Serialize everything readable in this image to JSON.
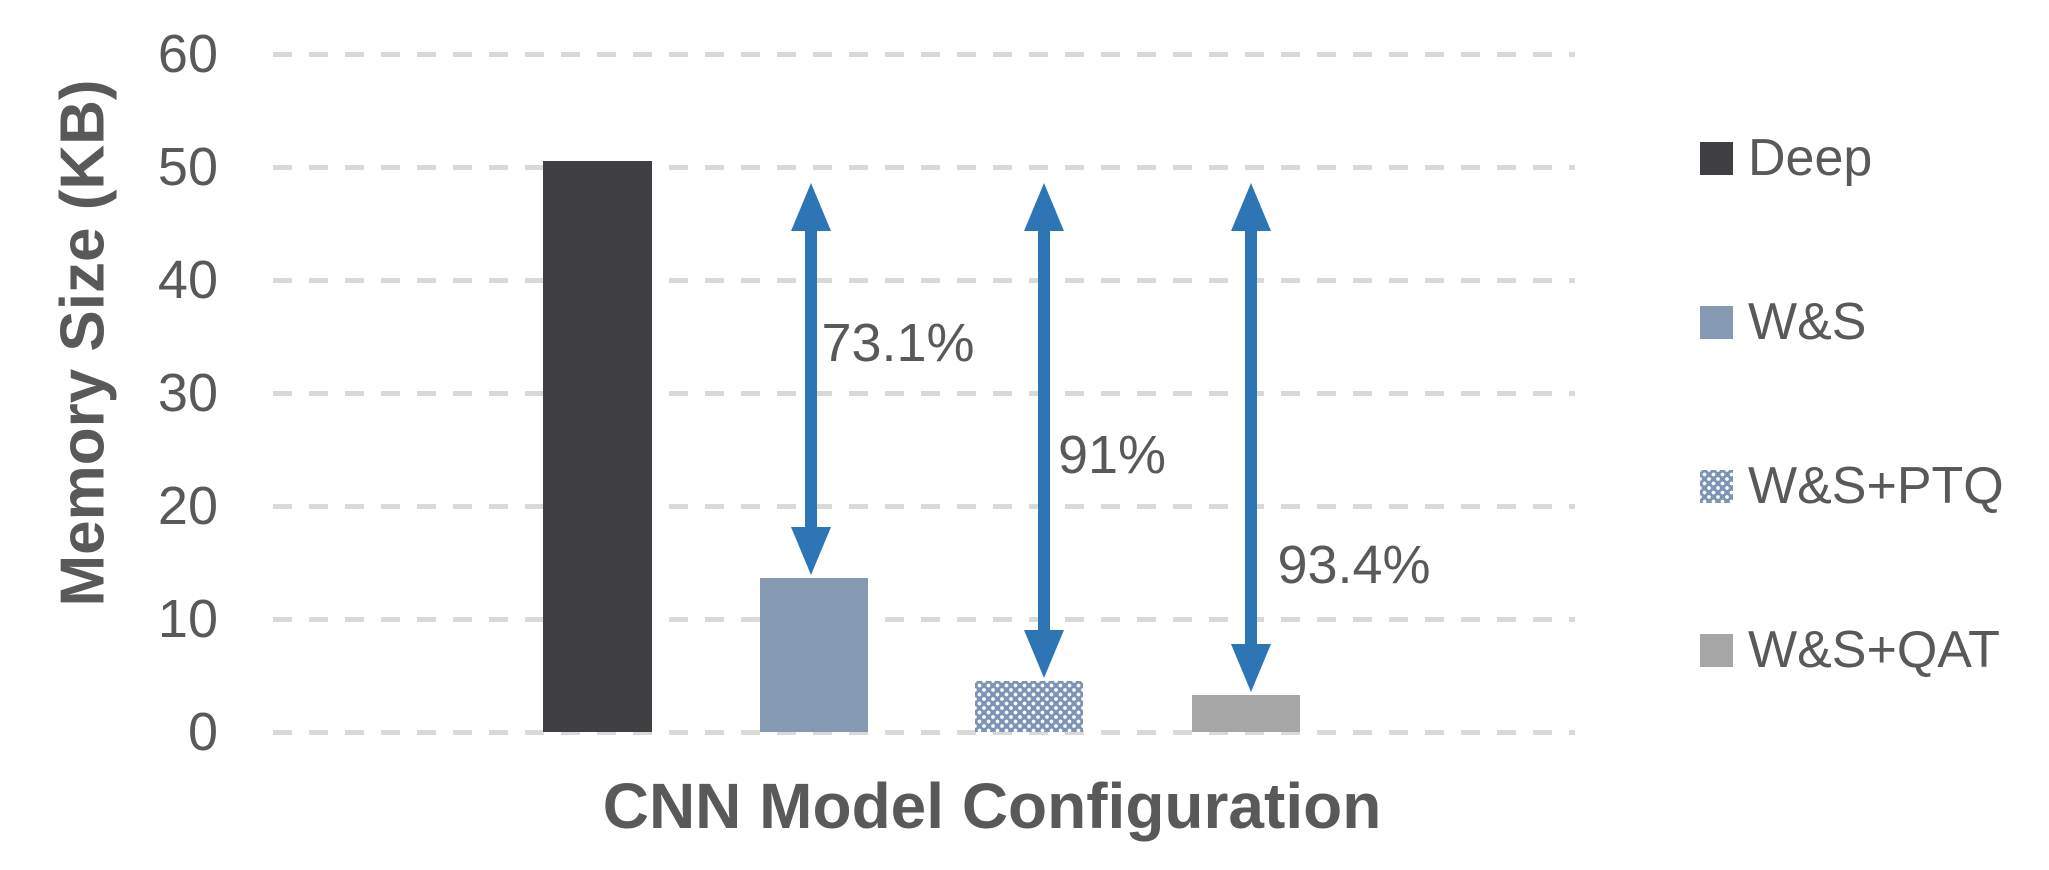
{
  "chart_data": {
    "type": "bar",
    "title": "",
    "xlabel": "CNN Model Configuration",
    "ylabel": "Memory Size (KB)",
    "categories": [
      "Deep",
      "W&S",
      "W&S+PTQ",
      "W&S+QAT"
    ],
    "values": [
      50.5,
      13.6,
      4.5,
      3.3
    ],
    "unit": "KB",
    "ylim": [
      0,
      60
    ],
    "ytick_interval": 10,
    "yticks": [
      "60",
      "50",
      "40",
      "30",
      "20",
      "10",
      "0"
    ],
    "grid": "horizontal-dashed",
    "gridline_color": "#d9d9d9",
    "text_color": "#595959",
    "legend_position": "right",
    "series_styles": [
      {
        "label": "Deep",
        "color": "#404043",
        "pattern": "solid"
      },
      {
        "label": "W&S",
        "color": "#8599b2",
        "pattern": "solid"
      },
      {
        "label": "W&S+PTQ",
        "color": "#7d95b5",
        "pattern": "dotted-checker"
      },
      {
        "label": "W&S+QAT",
        "color": "#a6a6a6",
        "pattern": "solid"
      }
    ],
    "annotations": [
      {
        "text": "73.1%",
        "target_category": "W&S"
      },
      {
        "text": "91%",
        "target_category": "W&S+PTQ"
      },
      {
        "text": "93.4%",
        "target_category": "W&S+QAT"
      }
    ],
    "arrow_color": "#2e75b6"
  }
}
